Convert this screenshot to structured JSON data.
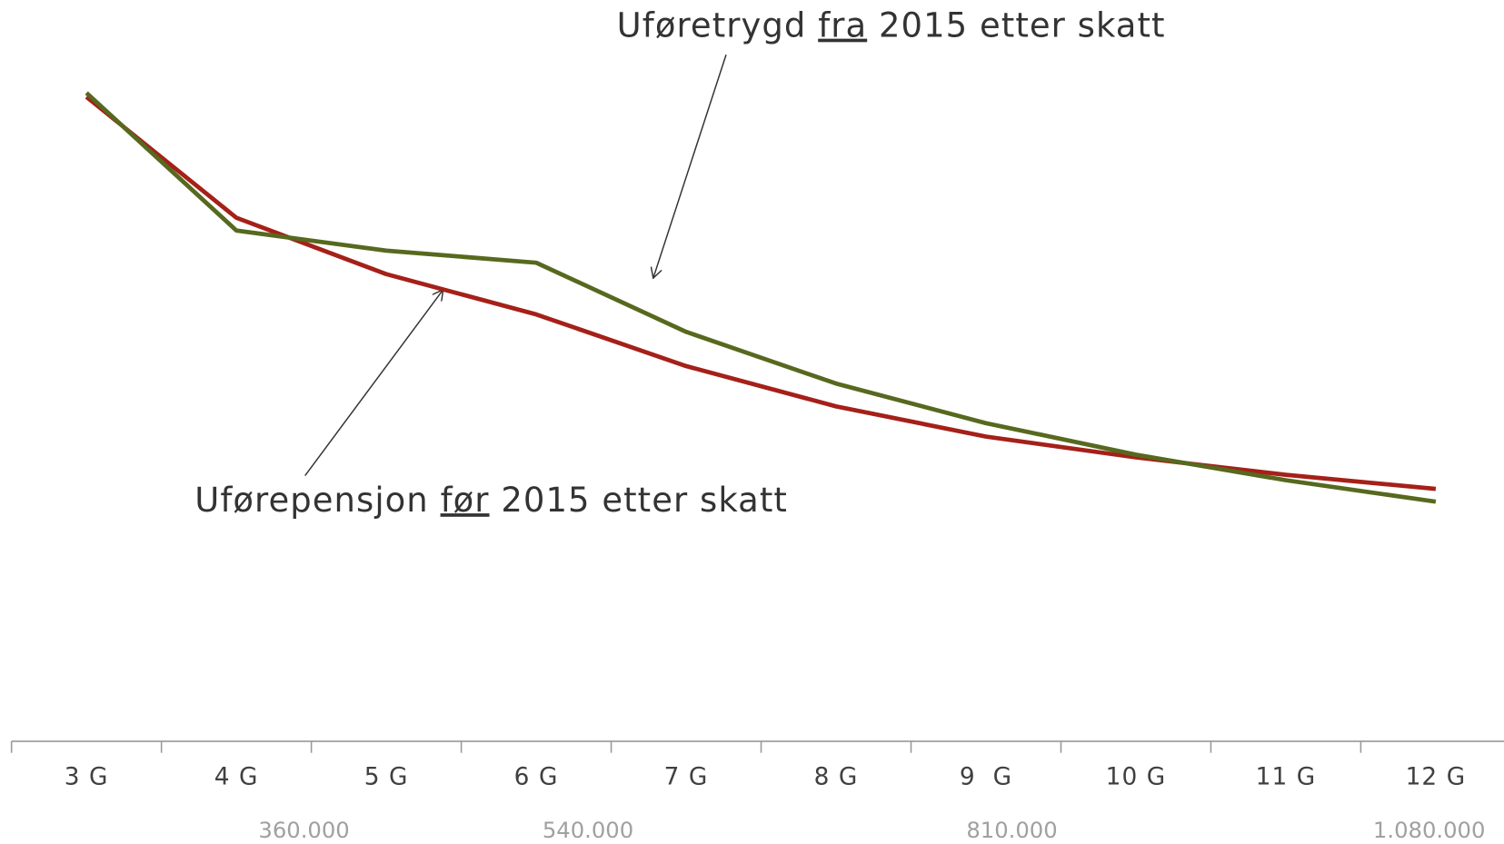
{
  "chart_data": {
    "type": "line",
    "categories": [
      "3 G",
      "4 G",
      "5 G",
      "6 G",
      "7 G",
      "8 G",
      "9  G",
      "10 G",
      "11 G",
      "12 G"
    ],
    "secondary_labels": [
      "360.000",
      "540.000",
      "810.000",
      "1.080.000"
    ],
    "series": [
      {
        "name": "Uførepensjon før 2015 etter skatt",
        "color": "#a52019",
        "values": [
          96.0,
          78.0,
          69.6,
          63.6,
          55.9,
          49.9,
          45.4,
          42.3,
          39.7,
          37.6
        ]
      },
      {
        "name": "Uføretrygd fra 2015 etter skatt",
        "color": "#56691e",
        "values": [
          96.6,
          76.1,
          73.1,
          71.3,
          61.0,
          53.3,
          47.4,
          42.7,
          38.9,
          35.7
        ]
      }
    ],
    "annotations": [
      {
        "before": "Uføretrygd",
        "underlined": "fra",
        "after": "2015 etter skatt"
      },
      {
        "before": "Uførepensjon",
        "underlined": "før",
        "after": "2015 etter skatt"
      }
    ],
    "ylim": [
      0,
      100
    ],
    "grid": false
  }
}
